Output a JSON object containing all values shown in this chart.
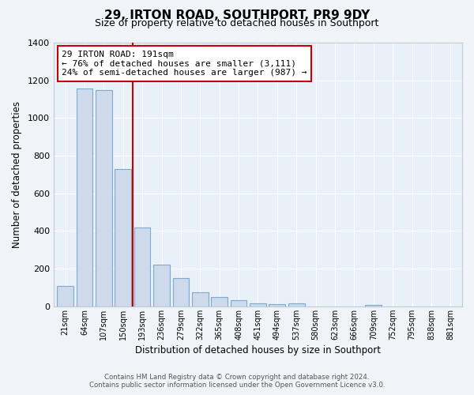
{
  "title": "29, IRTON ROAD, SOUTHPORT, PR9 9DY",
  "subtitle": "Size of property relative to detached houses in Southport",
  "xlabel": "Distribution of detached houses by size in Southport",
  "ylabel": "Number of detached properties",
  "bar_labels": [
    "21sqm",
    "64sqm",
    "107sqm",
    "150sqm",
    "193sqm",
    "236sqm",
    "279sqm",
    "322sqm",
    "365sqm",
    "408sqm",
    "451sqm",
    "494sqm",
    "537sqm",
    "580sqm",
    "623sqm",
    "666sqm",
    "709sqm",
    "752sqm",
    "795sqm",
    "838sqm",
    "881sqm"
  ],
  "bar_values": [
    110,
    1155,
    1150,
    730,
    420,
    220,
    148,
    73,
    50,
    32,
    15,
    12,
    15,
    0,
    0,
    0,
    7,
    0,
    0,
    0,
    0
  ],
  "bar_color": "#cddaec",
  "bar_edge_color": "#7fa8cc",
  "vline_color": "#cc0000",
  "annotation_title": "29 IRTON ROAD: 191sqm",
  "annotation_line1": "← 76% of detached houses are smaller (3,111)",
  "annotation_line2": "24% of semi-detached houses are larger (987) →",
  "annotation_box_facecolor": "#ffffff",
  "annotation_box_edgecolor": "#cc0000",
  "ylim": [
    0,
    1400
  ],
  "yticks": [
    0,
    200,
    400,
    600,
    800,
    1000,
    1200,
    1400
  ],
  "grid_color": "#d0dce8",
  "plot_bg": "#e8f0f8",
  "fig_bg": "#f0f4f8",
  "footer1": "Contains HM Land Registry data © Crown copyright and database right 2024.",
  "footer2": "Contains public sector information licensed under the Open Government Licence v3.0."
}
